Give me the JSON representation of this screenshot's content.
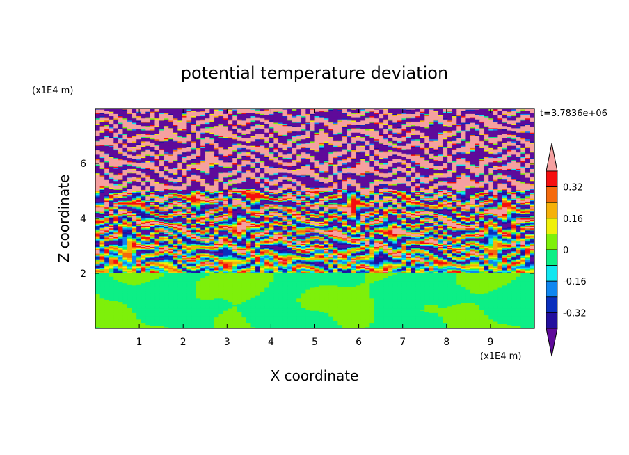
{
  "chart_data": {
    "type": "heatmap",
    "title": "potential temperature deviation",
    "time_label": "t=3.7836e+06",
    "xlabel": "X coordinate",
    "ylabel": "Z coordinate",
    "x_unit": "(x1E4 m)",
    "y_unit": "(x1E4 m)",
    "xlim": [
      0,
      10
    ],
    "ylim": [
      0,
      8
    ],
    "x_ticks": [
      1,
      2,
      3,
      4,
      5,
      6,
      7,
      8,
      9
    ],
    "y_ticks": [
      2,
      4,
      6
    ],
    "colorbar": {
      "levels": [
        -0.4,
        -0.32,
        -0.24,
        -0.16,
        -0.08,
        0,
        0.08,
        0.16,
        0.24,
        0.32,
        0.4
      ],
      "tick_labels": [
        "-0.32",
        "-0.16",
        "0",
        "0.16",
        "0.32"
      ],
      "tick_values": [
        -0.32,
        -0.16,
        0,
        0.16,
        0.32
      ],
      "colors": [
        "#5f0a9a",
        "#230f9e",
        "#0a2fbd",
        "#0f86f0",
        "#11e6f0",
        "#0cef86",
        "#7ef00a",
        "#f0f00a",
        "#f5b109",
        "#f56a0d",
        "#f50f0f",
        "#f5a0a0"
      ],
      "extends": "both"
    },
    "layers": [
      {
        "z_range": [
          0,
          2.0
        ],
        "pattern": "green blobs",
        "values": "-0.08 to 0.08"
      },
      {
        "z_range": [
          2.0,
          5.0
        ],
        "pattern": "mixed banded multicolor",
        "values": "-0.4 to 0.4"
      },
      {
        "z_range": [
          5.0,
          8.0
        ],
        "pattern": "alternating purple / pink bands",
        "values": "< -0.4 and > 0.4"
      }
    ]
  }
}
